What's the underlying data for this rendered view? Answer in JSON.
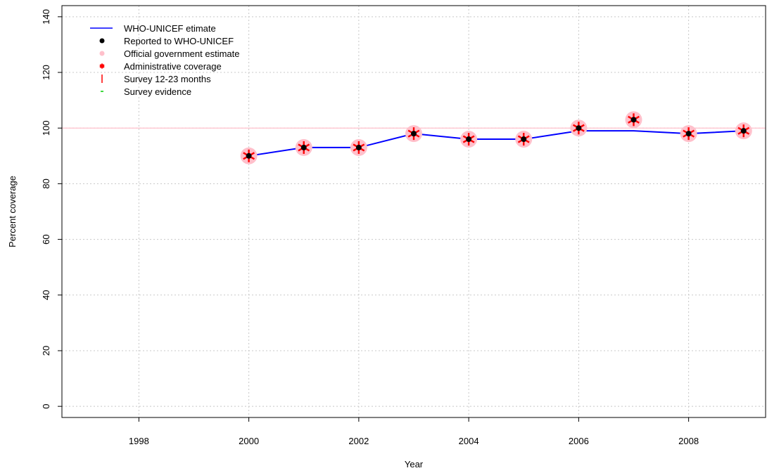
{
  "chart_data": {
    "type": "line",
    "title": "",
    "xlabel": "Year",
    "ylabel": "Percent coverage",
    "xlim": [
      1996.6,
      2009.4
    ],
    "ylim": [
      -4,
      144
    ],
    "xticks": [
      1998,
      2000,
      2002,
      2004,
      2006,
      2008
    ],
    "yticks": [
      0,
      20,
      40,
      60,
      80,
      100,
      120,
      140
    ],
    "grid": true,
    "reference_line": 100,
    "legend_position": "top-left",
    "colors": {
      "estimate": "#0000ff",
      "reported": "#000000",
      "official": "#ffc0cb",
      "administrative": "#ff0000",
      "survey": "#ff0000",
      "survey_evidence": "#00cc00",
      "grid": "#c8c8c8",
      "reference": "#ffc0cb"
    },
    "legend": [
      {
        "label": "WHO-UNICEF etimate",
        "symbol": "line",
        "color": "#0000ff"
      },
      {
        "label": "Reported to WHO-UNICEF",
        "symbol": "dot",
        "color": "#000000"
      },
      {
        "label": "Official government estimate",
        "symbol": "disc",
        "color": "#ffc0cb"
      },
      {
        "label": "Administrative coverage",
        "symbol": "star",
        "color": "#ff0000"
      },
      {
        "label": "Survey 12-23 months",
        "symbol": "bar",
        "color": "#ff0000"
      },
      {
        "label": "Survey evidence",
        "symbol": "dash",
        "color": "#00cc00"
      }
    ],
    "x": [
      2000,
      2001,
      2002,
      2003,
      2004,
      2005,
      2006,
      2007,
      2008,
      2009
    ],
    "series": [
      {
        "name": "WHO-UNICEF etimate",
        "values": [
          90,
          93,
          93,
          98,
          96,
          96,
          99,
          99,
          98,
          99
        ]
      },
      {
        "name": "Reported to WHO-UNICEF",
        "values": [
          90,
          93,
          93,
          98,
          96,
          96,
          100,
          103,
          98,
          99
        ]
      },
      {
        "name": "Official government estimate",
        "values": [
          90,
          93,
          93,
          98,
          96,
          96,
          100,
          103,
          98,
          99
        ]
      },
      {
        "name": "Administrative coverage",
        "values": [
          90,
          93,
          93,
          98,
          96,
          96,
          100,
          103,
          98,
          99
        ]
      }
    ]
  }
}
